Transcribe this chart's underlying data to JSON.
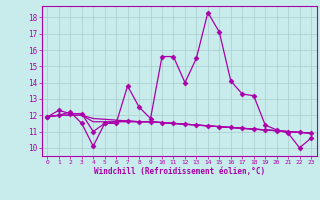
{
  "xlabel": "Windchill (Refroidissement éolien,°C)",
  "xlim": [
    -0.5,
    23.5
  ],
  "ylim": [
    9.5,
    18.7
  ],
  "yticks": [
    10,
    11,
    12,
    13,
    14,
    15,
    16,
    17,
    18
  ],
  "xticks": [
    0,
    1,
    2,
    3,
    4,
    5,
    6,
    7,
    8,
    9,
    10,
    11,
    12,
    13,
    14,
    15,
    16,
    17,
    18,
    19,
    20,
    21,
    22,
    23
  ],
  "bg_color": "#c8ecec",
  "line_color": "#aa00aa",
  "grid_color": "#aacccc",
  "series": [
    {
      "x": [
        0,
        1,
        2,
        3,
        4,
        5,
        6,
        7,
        8,
        9,
        10,
        11,
        12,
        13,
        14,
        15,
        16,
        17,
        18,
        19,
        20,
        21,
        22,
        23
      ],
      "y": [
        11.9,
        12.3,
        12.1,
        12.1,
        11.0,
        11.5,
        11.5,
        13.8,
        12.5,
        11.8,
        15.6,
        15.6,
        14.0,
        15.5,
        18.3,
        17.1,
        14.1,
        13.3,
        13.2,
        11.4,
        11.1,
        10.9,
        10.0,
        10.6
      ],
      "marker": "D",
      "markersize": 2.5,
      "linewidth": 0.9
    },
    {
      "x": [
        0,
        1,
        2,
        3,
        4,
        5,
        6,
        7,
        8,
        9,
        10,
        11,
        12,
        13,
        14,
        15,
        16,
        17,
        18,
        19,
        20,
        21,
        22,
        23
      ],
      "y": [
        11.9,
        12.0,
        12.0,
        12.0,
        11.8,
        11.75,
        11.7,
        11.65,
        11.6,
        11.6,
        11.55,
        11.5,
        11.45,
        11.4,
        11.35,
        11.3,
        11.25,
        11.2,
        11.15,
        11.1,
        11.05,
        11.0,
        10.95,
        10.9
      ],
      "marker": null,
      "markersize": 0,
      "linewidth": 0.9
    },
    {
      "x": [
        0,
        1,
        2,
        3,
        4,
        5,
        6,
        7,
        8,
        9,
        10,
        11,
        12,
        13,
        14,
        15,
        16,
        17,
        18,
        19,
        20,
        21,
        22,
        23
      ],
      "y": [
        11.9,
        12.0,
        12.0,
        12.0,
        11.6,
        11.6,
        11.6,
        11.6,
        11.6,
        11.6,
        11.55,
        11.5,
        11.45,
        11.4,
        11.35,
        11.3,
        11.25,
        11.2,
        11.15,
        11.1,
        11.05,
        11.0,
        10.95,
        10.9
      ],
      "marker": null,
      "markersize": 0,
      "linewidth": 0.9
    },
    {
      "x": [
        0,
        1,
        2,
        3,
        4,
        5,
        6,
        7,
        8,
        9,
        10,
        11,
        12,
        13,
        14,
        15,
        16,
        17,
        18,
        19,
        20,
        21,
        22,
        23
      ],
      "y": [
        11.9,
        12.0,
        12.2,
        11.5,
        10.1,
        11.5,
        11.6,
        11.65,
        11.6,
        11.6,
        11.55,
        11.5,
        11.45,
        11.4,
        11.35,
        11.3,
        11.25,
        11.2,
        11.15,
        11.1,
        11.05,
        11.0,
        10.95,
        10.9
      ],
      "marker": "D",
      "markersize": 2.5,
      "linewidth": 0.9
    }
  ]
}
